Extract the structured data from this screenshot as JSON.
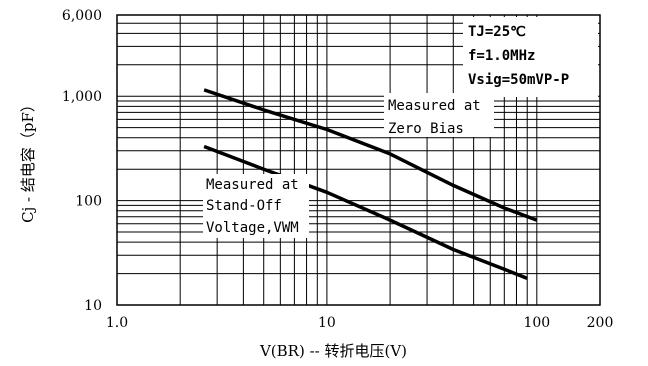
{
  "chart_data": {
    "type": "line",
    "x_scale": "log",
    "y_scale": "log",
    "xlim": [
      1.0,
      200
    ],
    "ylim": [
      10,
      6000
    ],
    "x_ticks": [
      {
        "value": 1.0,
        "label": "1.0"
      },
      {
        "value": 10,
        "label": "10"
      },
      {
        "value": 100,
        "label": "100"
      },
      {
        "value": 200,
        "label": "200"
      }
    ],
    "y_ticks": [
      {
        "value": 10,
        "label": "10"
      },
      {
        "value": 100,
        "label": "100"
      },
      {
        "value": 1000,
        "label": "1,000"
      },
      {
        "value": 6000,
        "label": "6,000"
      }
    ],
    "xlabel": "V(BR) -- 转折电压(V)",
    "ylabel": "Cj - 结电容（pF）",
    "grid": true,
    "series": [
      {
        "name": "Measured at Zero Bias",
        "x": [
          2.6,
          5,
          10,
          20,
          40,
          70,
          100
        ],
        "y": [
          1150,
          740,
          480,
          280,
          140,
          85,
          65
        ]
      },
      {
        "name": "Measured at Stand-Off Voltage,VWM",
        "x": [
          2.6,
          5,
          10,
          20,
          40,
          70,
          90
        ],
        "y": [
          330,
          200,
          120,
          65,
          34,
          22,
          18
        ]
      }
    ],
    "conditions": {
      "line1": "TJ=25℃",
      "line2": "f=1.0MHz",
      "line3": "Vsig=50mVP-P"
    },
    "annotations": {
      "zero_bias_line1": "Measured at",
      "zero_bias_line2": "Zero Bias",
      "standoff_line1": "Measured at",
      "standoff_line2": "Stand-Off",
      "standoff_line3": "Voltage,VWM"
    }
  }
}
